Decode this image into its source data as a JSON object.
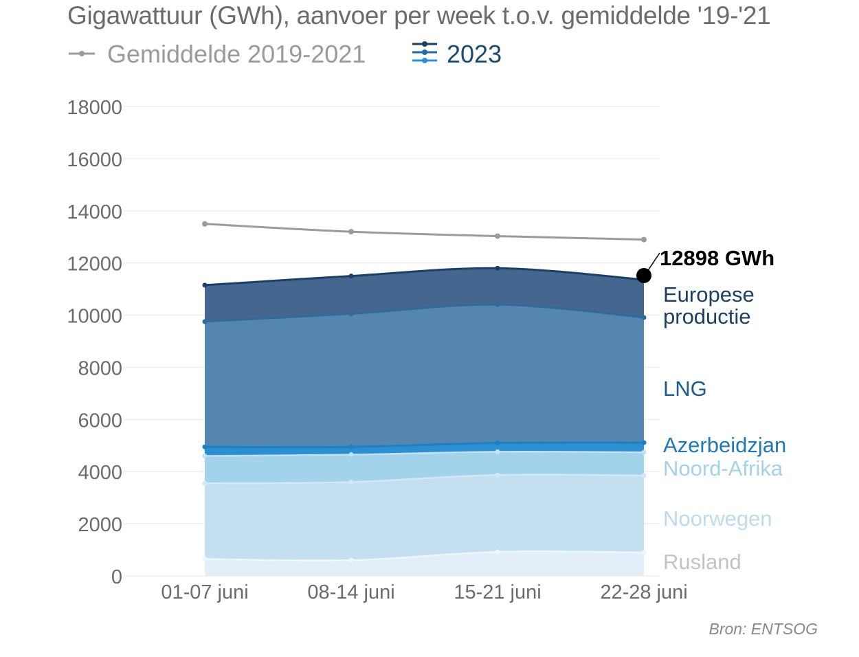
{
  "title": "Gigawattuur (GWh), aanvoer per week t.o.v. gemiddelde '19-'21",
  "legend": {
    "average_label": "Gemiddelde 2019-2021",
    "year_label": "2023"
  },
  "source": "Bron: ENTSOG",
  "colors": {
    "average": "#9b9b9b",
    "rusland": "#e3eff8",
    "noorwegen": "#c3dff0",
    "noord_afrika": "#a3d3eb",
    "azerbeidzjan": "#2e8fd0",
    "lng": "#5486b0",
    "europese_productie": "#44668f",
    "grid": "#eeeeee",
    "tick": "#6b6b6b"
  },
  "chart_data": {
    "type": "area",
    "stacked": true,
    "categories": [
      "01-07 juni",
      "08-14 juni",
      "15-21 juni",
      "22-28 juni"
    ],
    "ylim": [
      0,
      18000
    ],
    "yticks": [
      0,
      2000,
      4000,
      6000,
      8000,
      10000,
      12000,
      14000,
      16000,
      18000
    ],
    "grid": true,
    "series": [
      {
        "name": "Rusland",
        "key": "rusland",
        "values": [
          650,
          600,
          920,
          900
        ],
        "label_color": "#c3c3c3"
      },
      {
        "name": "Noorwegen",
        "key": "noorwegen",
        "values": [
          2900,
          3000,
          2950,
          2950
        ],
        "label_color": "#bcdcee"
      },
      {
        "name": "Noord-Afrika",
        "key": "noord_afrika",
        "values": [
          1050,
          1050,
          890,
          890
        ],
        "label_color": "#a5d2e8"
      },
      {
        "name": "Azerbeidzjan",
        "key": "azerbeidzjan",
        "values": [
          350,
          300,
          340,
          370
        ],
        "label_color": "#1f79b5"
      },
      {
        "name": "LNG",
        "key": "lng",
        "values": [
          4800,
          5100,
          5300,
          4800
        ],
        "label_color": "#1e5c8a"
      },
      {
        "name": "Europese productie",
        "label_lines": [
          "Europese",
          "productie"
        ],
        "key": "europese_productie",
        "values": [
          1400,
          1450,
          1400,
          1450
        ],
        "label_color": "#1c3f66"
      }
    ],
    "average": {
      "name": "Gemiddelde 2019-2021",
      "values": [
        13500,
        13200,
        13030,
        12898
      ]
    },
    "annotation": {
      "text": "12898 GWh",
      "value": 12898
    }
  }
}
